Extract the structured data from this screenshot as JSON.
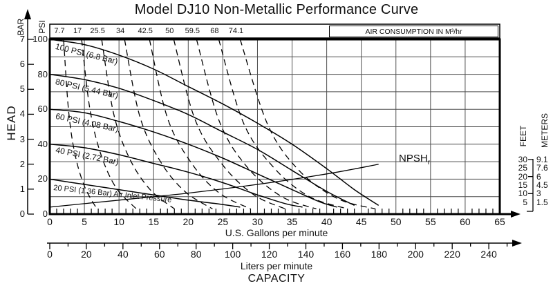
{
  "title": "Model DJ10 Non-Metallic Performance Curve",
  "axes": {
    "head_label": "HEAD",
    "bar_label": "BAR",
    "psi_label": "PSI",
    "bar_ticks": [
      7,
      6,
      5,
      4,
      3,
      2,
      1,
      0
    ],
    "psi_ticks": [
      100,
      80,
      60,
      40,
      20,
      0
    ],
    "gpm_ticks": [
      0,
      5,
      10,
      15,
      20,
      25,
      30,
      35,
      40,
      45,
      50,
      55,
      60,
      65
    ],
    "gpm_label": "U.S. Gallons per minute",
    "lpm_ticks": [
      0,
      20,
      40,
      60,
      80,
      100,
      120,
      140,
      160,
      180,
      200,
      220,
      240
    ],
    "lpm_label": "Liters per minute",
    "capacity_label": "CAPACITY",
    "feet_label": "FEET",
    "meters_label": "METERS"
  },
  "air_strip": {
    "title": "AIR CONSUMPTION IN M³/hr"
  },
  "chart_data": {
    "type": "line",
    "title": "Model DJ10 Non-Metallic Performance Curve",
    "xlabel": "CAPACITY — U.S. Gallons per minute (0–65) / Liters per minute (0–240)",
    "ylabel": "HEAD — PSI (0–100) / BAR (0–7)",
    "x_range_gpm": [
      0,
      65
    ],
    "y_range_psi": [
      0,
      100
    ],
    "x2_range_lpm": [
      0,
      240
    ],
    "grid": {
      "x_step_gpm": 5,
      "y_step_psi": 10,
      "grid_on": true
    },
    "air_consumption_values_m3hr": [
      7.7,
      17,
      25.5,
      34,
      42.5,
      50,
      59.5,
      68,
      74.1
    ],
    "pressure_curves": [
      {
        "label": "100 PSI (6.8 Bar)",
        "points": [
          [
            0,
            100
          ],
          [
            5,
            97
          ],
          [
            10,
            91
          ],
          [
            15,
            83
          ],
          [
            20,
            73
          ],
          [
            25,
            63
          ],
          [
            30,
            52
          ],
          [
            35,
            40
          ],
          [
            40,
            26
          ],
          [
            44,
            14
          ],
          [
            47.5,
            5
          ]
        ]
      },
      {
        "label": "80 PSI (5.44 Bar)",
        "points": [
          [
            0,
            80
          ],
          [
            5,
            77
          ],
          [
            10,
            72
          ],
          [
            15,
            65
          ],
          [
            20,
            57
          ],
          [
            25,
            47
          ],
          [
            30,
            37
          ],
          [
            35,
            25
          ],
          [
            40,
            13
          ],
          [
            44,
            5
          ]
        ]
      },
      {
        "label": "60 PSI (4.08 Bar)",
        "points": [
          [
            0,
            60
          ],
          [
            5,
            58
          ],
          [
            10,
            53
          ],
          [
            15,
            47
          ],
          [
            20,
            40
          ],
          [
            25,
            32
          ],
          [
            30,
            23
          ],
          [
            35,
            14
          ],
          [
            39,
            7
          ],
          [
            41.5,
            4
          ]
        ]
      },
      {
        "label": "40 PSI (2.72 Bar)",
        "points": [
          [
            0,
            40
          ],
          [
            5,
            38
          ],
          [
            10,
            34
          ],
          [
            15,
            29
          ],
          [
            20,
            24
          ],
          [
            25,
            18
          ],
          [
            30,
            11
          ],
          [
            34,
            6
          ],
          [
            36.5,
            4
          ]
        ]
      },
      {
        "label": "20 PSI (1.36 Bar) Air Inlet Pressure",
        "points": [
          [
            0,
            20
          ],
          [
            5,
            17
          ],
          [
            10,
            14
          ],
          [
            15,
            11
          ],
          [
            20,
            8
          ],
          [
            24,
            6
          ],
          [
            27.5,
            4
          ]
        ]
      }
    ],
    "air_consumption_curves": [
      {
        "label": "7.7",
        "points": [
          [
            2,
            100
          ],
          [
            2.7,
            60
          ],
          [
            3.6,
            35
          ],
          [
            5,
            16
          ],
          [
            6.8,
            3
          ]
        ]
      },
      {
        "label": "17",
        "points": [
          [
            4.6,
            100
          ],
          [
            5.8,
            60
          ],
          [
            7.4,
            34
          ],
          [
            9.6,
            15
          ],
          [
            12.5,
            3
          ]
        ]
      },
      {
        "label": "25.5",
        "points": [
          [
            7.5,
            100
          ],
          [
            9.2,
            58
          ],
          [
            11.5,
            32
          ],
          [
            14.5,
            14
          ],
          [
            18,
            3
          ]
        ]
      },
      {
        "label": "34",
        "points": [
          [
            10.8,
            100
          ],
          [
            13,
            56
          ],
          [
            16,
            30
          ],
          [
            19.5,
            13
          ],
          [
            23.5,
            3
          ]
        ]
      },
      {
        "label": "42.5",
        "points": [
          [
            14.4,
            100
          ],
          [
            17,
            55
          ],
          [
            20.5,
            29
          ],
          [
            24.5,
            12
          ],
          [
            29,
            3
          ]
        ]
      },
      {
        "label": "50",
        "points": [
          [
            17.9,
            100
          ],
          [
            21,
            54
          ],
          [
            25,
            28
          ],
          [
            29.5,
            11
          ],
          [
            34,
            3
          ]
        ]
      },
      {
        "label": "59.5",
        "points": [
          [
            21.2,
            100
          ],
          [
            24.5,
            53
          ],
          [
            28.5,
            27
          ],
          [
            33.5,
            10
          ],
          [
            38.5,
            3
          ]
        ]
      },
      {
        "label": "68",
        "points": [
          [
            24.4,
            100
          ],
          [
            28,
            52
          ],
          [
            32.5,
            26
          ],
          [
            37.5,
            10
          ],
          [
            43,
            3
          ]
        ]
      },
      {
        "label": "74.1",
        "points": [
          [
            27.5,
            100
          ],
          [
            31.5,
            51
          ],
          [
            36,
            25
          ],
          [
            41.5,
            9
          ],
          [
            47,
            3
          ]
        ]
      }
    ],
    "npsh_curve": {
      "label": "NPSHr",
      "label_main": "NPSH",
      "label_sub": "r",
      "points": [
        [
          0,
          4
        ],
        [
          10,
          8
        ],
        [
          20,
          12
        ],
        [
          30,
          17
        ],
        [
          40,
          23
        ],
        [
          47.5,
          28.5
        ]
      ]
    },
    "npsh_scale": {
      "feet": [
        "30",
        "25",
        "20",
        "15",
        "10",
        "5"
      ],
      "meters": [
        "9.1",
        "7.6",
        "6",
        "4.5",
        "3",
        "1.5"
      ]
    },
    "colors": {
      "curve": "#000000",
      "grid": "#4d4d4d",
      "text": "#111111"
    }
  }
}
